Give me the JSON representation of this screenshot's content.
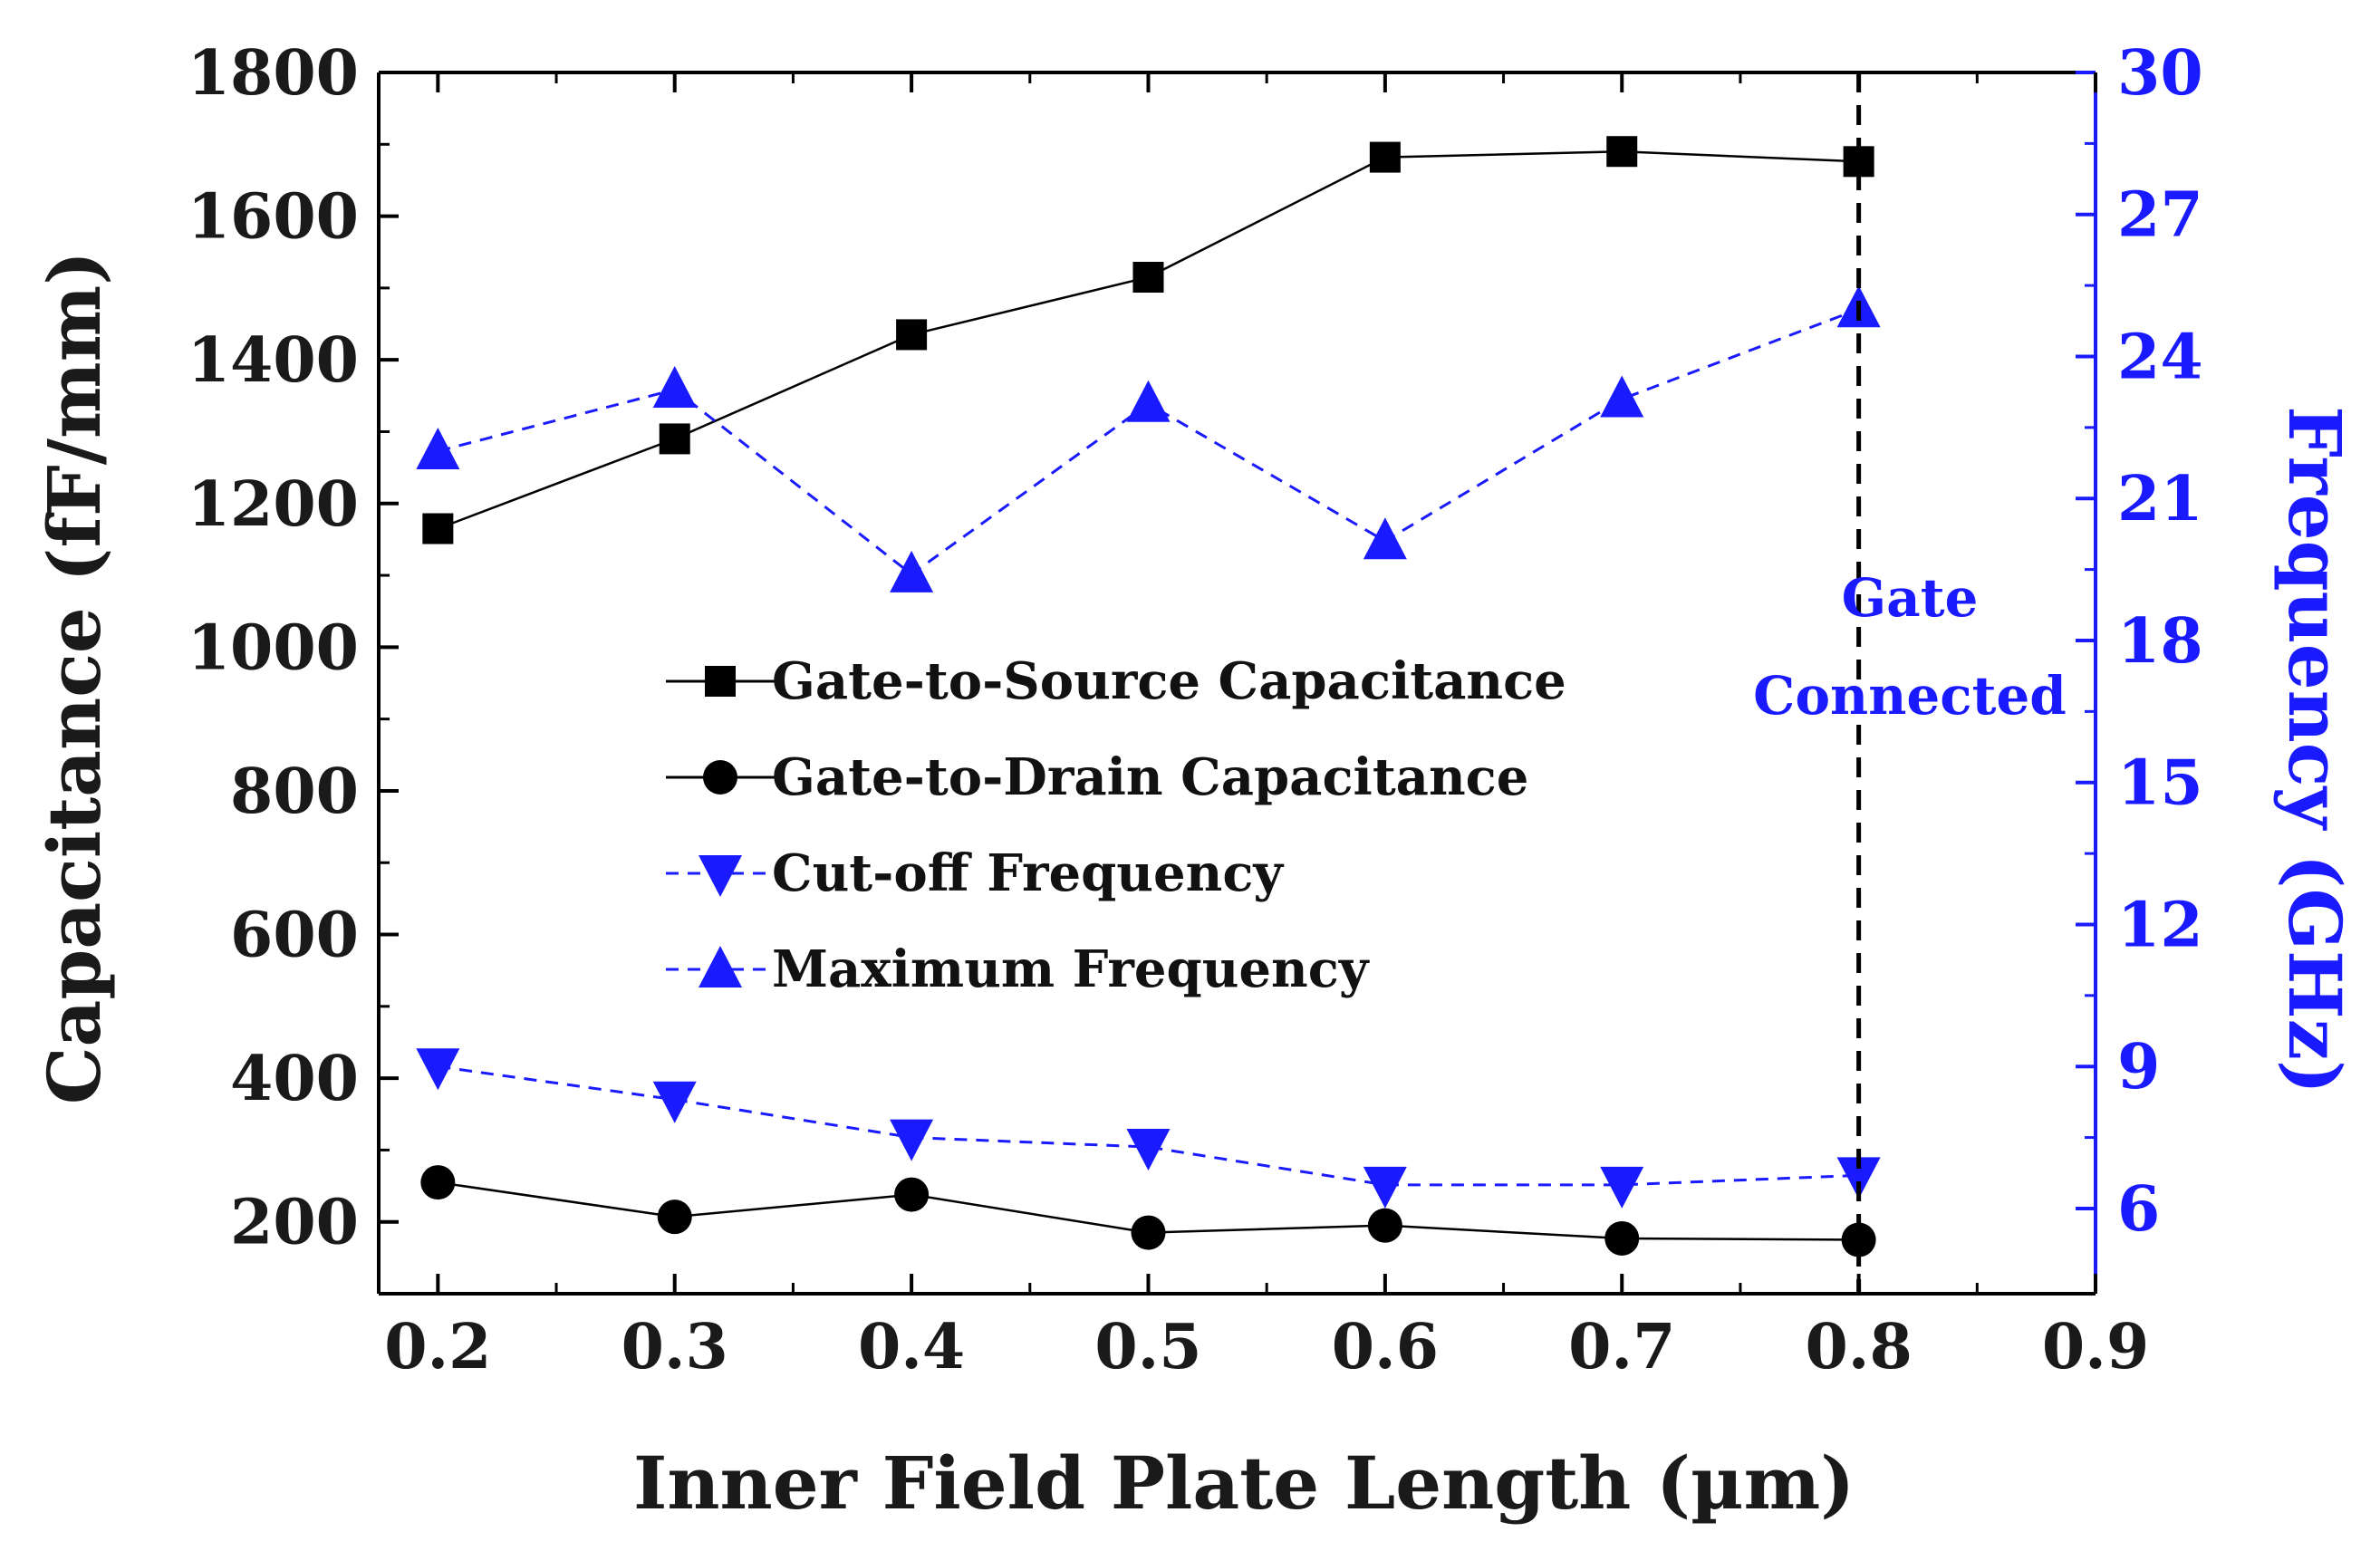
{
  "chart_data": {
    "type": "line",
    "title": "",
    "xlabel": "Inner Field Plate Length (µm)",
    "ylabel_left": "Capacitance (fF/mm)",
    "ylabel_right": "Frequency (GHz)",
    "xlim": [
      0.175,
      0.9
    ],
    "ylim_left": [
      100,
      1800
    ],
    "ylim_right": [
      4.2,
      30
    ],
    "x_ticks": [
      "0.2",
      "0.3",
      "0.4",
      "0.5",
      "0.6",
      "0.7",
      "0.8",
      "0.9"
    ],
    "y_left_ticks": [
      "200",
      "400",
      "600",
      "800",
      "1000",
      "1200",
      "1400",
      "1600",
      "1800"
    ],
    "y_right_ticks": [
      "6",
      "9",
      "12",
      "15",
      "18",
      "21",
      "24",
      "27",
      "30"
    ],
    "x": [
      0.2,
      0.3,
      0.4,
      0.5,
      0.6,
      0.7,
      0.8
    ],
    "series": [
      {
        "name": "Gate-to-Source Capacitance",
        "axis": "left",
        "marker": "square",
        "color": "#000000",
        "line": "solid",
        "values": [
          1165,
          1290,
          1435,
          1515,
          1682,
          1690,
          1676
        ]
      },
      {
        "name": "Gate-to-Drain Capacitance",
        "axis": "left",
        "marker": "circle",
        "color": "#000000",
        "line": "solid",
        "values": [
          255,
          207,
          238,
          185,
          195,
          177,
          175
        ]
      },
      {
        "name": "Cut-off Frequency",
        "axis": "right",
        "marker": "triangle-down",
        "color": "#1a1aff",
        "line": "dashed",
        "values": [
          9.0,
          8.3,
          7.5,
          7.3,
          6.5,
          6.5,
          6.7
        ]
      },
      {
        "name": "Maximum Frequency",
        "axis": "right",
        "marker": "triangle-up",
        "color": "#1a1aff",
        "line": "dashed",
        "values": [
          22.0,
          23.3,
          19.4,
          23.0,
          20.1,
          23.1,
          25.0
        ]
      }
    ],
    "reference_line": {
      "x": 0.8,
      "style": "dashed",
      "color": "#000000"
    },
    "annotations": [
      {
        "lines": [
          "Gate",
          "Connected"
        ],
        "color": "#1a1aff"
      }
    ],
    "legend_position": "center",
    "grid": false
  }
}
